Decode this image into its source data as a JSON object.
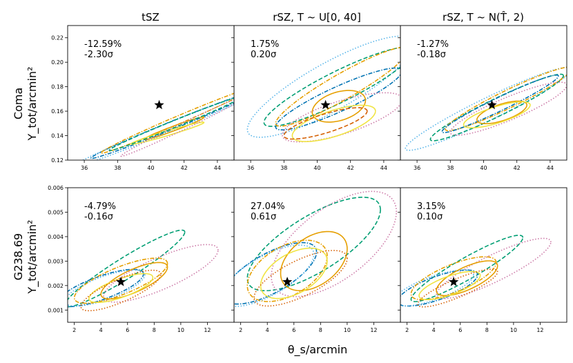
{
  "figure": {
    "column_titles": [
      "tSZ",
      "rSZ, T ~ U[0, 40]",
      "rSZ, T ~ N(T̂, 2)"
    ],
    "row_labels": [
      {
        "name": "Coma",
        "ylabel": "Y_tot/arcmin²"
      },
      {
        "name": "G238.69",
        "ylabel": "Y_tot/arcmin²"
      }
    ],
    "xlabel": "θ_s/arcmin"
  },
  "chart_data": [
    {
      "type": "scatter",
      "row": 0,
      "col": 0,
      "xlim": [
        35,
        45
      ],
      "ylim": [
        0.12,
        0.23
      ],
      "xticks": [
        "36",
        "38",
        "40",
        "42",
        "44"
      ],
      "yticks": [
        "0.12",
        "0.14",
        "0.16",
        "0.18",
        "0.20",
        "0.22"
      ],
      "annotation": [
        "-12.59%",
        "-2.30σ"
      ],
      "star": [
        40.5,
        0.165
      ],
      "ellipses": [
        {
          "color": "#0072B2",
          "style": "dashdot",
          "cx": 41.2,
          "cy": 0.148,
          "a": 4.8,
          "b": 0.0035,
          "angle": 0.0055
        },
        {
          "color": "#56B4E9",
          "style": "dotted",
          "cx": 40.8,
          "cy": 0.145,
          "a": 5.5,
          "b": 0.004,
          "angle": 0.0055
        },
        {
          "color": "#E69F00",
          "style": "dashdot",
          "cx": 41.5,
          "cy": 0.152,
          "a": 4.5,
          "b": 0.0035,
          "angle": 0.0058
        },
        {
          "color": "#E69F00",
          "style": "solid",
          "cx": 41.4,
          "cy": 0.146,
          "a": 1.8,
          "b": 0.002,
          "angle": 0.005
        },
        {
          "color": "#F0E442",
          "style": "solid",
          "cx": 41.0,
          "cy": 0.142,
          "a": 2.2,
          "b": 0.002,
          "angle": 0.004
        },
        {
          "color": "#CC79A7",
          "style": "dotted",
          "cx": 42.0,
          "cy": 0.148,
          "a": 3.8,
          "b": 0.003,
          "angle": 0.0065
        },
        {
          "color": "#009E73",
          "style": "dashed",
          "cx": 41.5,
          "cy": 0.15,
          "a": 4.0,
          "b": 0.003,
          "angle": 0.0055
        }
      ]
    },
    {
      "type": "scatter",
      "row": 0,
      "col": 1,
      "xlim": [
        35,
        45
      ],
      "ylim": [
        0.12,
        0.23
      ],
      "xticks": [
        "36",
        "38",
        "40",
        "42",
        "44"
      ],
      "yticks": [],
      "annotation": [
        "1.75%",
        "0.20σ"
      ],
      "star": [
        40.5,
        0.165
      ],
      "ellipses": [
        {
          "color": "#56B4E9",
          "style": "dotted",
          "cx": 40.8,
          "cy": 0.18,
          "a": 5.0,
          "b": 0.022,
          "angle": 0.007
        },
        {
          "color": "#009E73",
          "style": "dashed",
          "cx": 41.3,
          "cy": 0.18,
          "a": 4.5,
          "b": 0.014,
          "angle": 0.0065
        },
        {
          "color": "#E69F00",
          "style": "dashdot",
          "cx": 41.5,
          "cy": 0.18,
          "a": 4.0,
          "b": 0.012,
          "angle": 0.0075
        },
        {
          "color": "#0072B2",
          "style": "dashdot",
          "cx": 41.3,
          "cy": 0.17,
          "a": 3.8,
          "b": 0.011,
          "angle": 0.006
        },
        {
          "color": "#CC79A7",
          "style": "dotted",
          "cx": 41.5,
          "cy": 0.155,
          "a": 3.6,
          "b": 0.014,
          "angle": 0.004
        },
        {
          "color": "#E69F00",
          "style": "solid",
          "cx": 41.3,
          "cy": 0.164,
          "a": 1.6,
          "b": 0.012,
          "angle": 0.003
        },
        {
          "color": "#F0E442",
          "style": "solid",
          "cx": 41.0,
          "cy": 0.15,
          "a": 2.5,
          "b": 0.011,
          "angle": 0.004
        },
        {
          "color": "#D55E00",
          "style": "dashed",
          "cx": 40.5,
          "cy": 0.15,
          "a": 2.5,
          "b": 0.008,
          "angle": 0.004
        }
      ]
    },
    {
      "type": "scatter",
      "row": 0,
      "col": 2,
      "xlim": [
        35,
        45
      ],
      "ylim": [
        0.12,
        0.23
      ],
      "xticks": [
        "36",
        "38",
        "40",
        "42",
        "44"
      ],
      "yticks": [],
      "annotation": [
        "-1.27%",
        "-0.18σ"
      ],
      "star": [
        40.5,
        0.165
      ],
      "ellipses": [
        {
          "color": "#56B4E9",
          "style": "dotted",
          "cx": 40.3,
          "cy": 0.162,
          "a": 5.0,
          "b": 0.01,
          "angle": 0.0065
        },
        {
          "color": "#009E73",
          "style": "dashed",
          "cx": 40.8,
          "cy": 0.163,
          "a": 4.0,
          "b": 0.008,
          "angle": 0.0065
        },
        {
          "color": "#E69F00",
          "style": "dashdot",
          "cx": 41.5,
          "cy": 0.17,
          "a": 3.8,
          "b": 0.008,
          "angle": 0.0065
        },
        {
          "color": "#0072B2",
          "style": "dashdot",
          "cx": 41.0,
          "cy": 0.166,
          "a": 3.5,
          "b": 0.006,
          "angle": 0.0065
        },
        {
          "color": "#CC79A7",
          "style": "dotted",
          "cx": 41.5,
          "cy": 0.162,
          "a": 3.5,
          "b": 0.01,
          "angle": 0.0055
        },
        {
          "color": "#E69F00",
          "style": "solid",
          "cx": 41.1,
          "cy": 0.159,
          "a": 1.5,
          "b": 0.007,
          "angle": 0.004
        },
        {
          "color": "#F0E442",
          "style": "solid",
          "cx": 40.8,
          "cy": 0.157,
          "a": 2.0,
          "b": 0.007,
          "angle": 0.004
        }
      ]
    },
    {
      "type": "scatter",
      "row": 1,
      "col": 0,
      "xlim": [
        1.5,
        14
      ],
      "ylim": [
        0.0005,
        0.006
      ],
      "xticks": [
        "2",
        "4",
        "6",
        "8",
        "10",
        "12"
      ],
      "yticks": [
        "0.001",
        "0.002",
        "0.003",
        "0.004",
        "0.005",
        "0.006"
      ],
      "annotation": [
        "-4.79%",
        "-0.16σ"
      ],
      "star": [
        5.5,
        0.00215
      ],
      "ellipses": [
        {
          "color": "#009E73",
          "style": "dashed",
          "cx": 5.8,
          "cy": 0.0027,
          "a": 4.5,
          "b": 0.0005,
          "angle": 0.00033
        },
        {
          "color": "#CC79A7",
          "style": "dotted",
          "cx": 8.5,
          "cy": 0.0025,
          "a": 4.3,
          "b": 0.0007,
          "angle": 0.00022
        },
        {
          "color": "#0072B2",
          "style": "dashdot",
          "cx": 4.0,
          "cy": 0.0019,
          "a": 3.2,
          "b": 0.0005,
          "angle": 0.00018
        },
        {
          "color": "#56B4E9",
          "style": "dotted",
          "cx": 4.3,
          "cy": 0.0019,
          "a": 3.0,
          "b": 0.0005,
          "angle": 0.00018
        },
        {
          "color": "#E69F00",
          "style": "dashdot",
          "cx": 5.5,
          "cy": 0.0022,
          "a": 3.5,
          "b": 0.0006,
          "angle": 0.0002
        },
        {
          "color": "#E69F00",
          "style": "solid",
          "cx": 6.5,
          "cy": 0.0022,
          "a": 2.5,
          "b": 0.0005,
          "angle": 0.00022
        },
        {
          "color": "#F0E442",
          "style": "solid",
          "cx": 5.5,
          "cy": 0.0019,
          "a": 2.4,
          "b": 0.0004,
          "angle": 0.00018
        },
        {
          "color": "#D55E00",
          "style": "dotted",
          "cx": 5.5,
          "cy": 0.0018,
          "a": 3.0,
          "b": 0.0005,
          "angle": 0.00022
        }
      ]
    },
    {
      "type": "scatter",
      "row": 1,
      "col": 1,
      "xlim": [
        1.5,
        14
      ],
      "ylim": [
        0.0005,
        0.006
      ],
      "xticks": [
        "2",
        "4",
        "6",
        "8",
        "10",
        "12"
      ],
      "yticks": [],
      "annotation": [
        "27.04%",
        "0.61σ"
      ],
      "star": [
        5.5,
        0.00215
      ],
      "ellipses": [
        {
          "color": "#009E73",
          "style": "dashed",
          "cx": 7.5,
          "cy": 0.0037,
          "a": 5.0,
          "b": 0.0013,
          "angle": 0.00028
        },
        {
          "color": "#CC79A7",
          "style": "dotted",
          "cx": 9.0,
          "cy": 0.0037,
          "a": 4.7,
          "b": 0.0017,
          "angle": 0.00028
        },
        {
          "color": "#0072B2",
          "style": "dashdot",
          "cx": 4.2,
          "cy": 0.0025,
          "a": 3.5,
          "b": 0.0009,
          "angle": 0.00025
        },
        {
          "color": "#56B4E9",
          "style": "dotted",
          "cx": 4.0,
          "cy": 0.0024,
          "a": 3.5,
          "b": 0.0009,
          "angle": 0.00025
        },
        {
          "color": "#E69F00",
          "style": "dashdot",
          "cx": 5.5,
          "cy": 0.0026,
          "a": 3.0,
          "b": 0.0011,
          "angle": 0.0002
        },
        {
          "color": "#E69F00",
          "style": "solid",
          "cx": 7.5,
          "cy": 0.003,
          "a": 2.5,
          "b": 0.0011,
          "angle": 0.0002
        },
        {
          "color": "#F0E442",
          "style": "solid",
          "cx": 6.0,
          "cy": 0.0025,
          "a": 2.5,
          "b": 0.0009,
          "angle": 0.0002
        },
        {
          "color": "#D55E00",
          "style": "dotted",
          "cx": 6.5,
          "cy": 0.0023,
          "a": 3.5,
          "b": 0.0008,
          "angle": 0.00023
        }
      ]
    },
    {
      "type": "scatter",
      "row": 1,
      "col": 2,
      "xlim": [
        1.5,
        14
      ],
      "ylim": [
        0.0005,
        0.006
      ],
      "xticks": [
        "2",
        "4",
        "6",
        "8",
        "10",
        "12"
      ],
      "yticks": [],
      "annotation": [
        "3.15%",
        "0.10σ"
      ],
      "star": [
        5.5,
        0.00215
      ],
      "ellipses": [
        {
          "color": "#009E73",
          "style": "dashed",
          "cx": 6.5,
          "cy": 0.0027,
          "a": 4.2,
          "b": 0.0005,
          "angle": 0.0003
        },
        {
          "color": "#CC79A7",
          "style": "dotted",
          "cx": 8.5,
          "cy": 0.0027,
          "a": 4.3,
          "b": 0.0006,
          "angle": 0.00025
        },
        {
          "color": "#0072B2",
          "style": "dashdot",
          "cx": 4.3,
          "cy": 0.0019,
          "a": 3.0,
          "b": 0.0005,
          "angle": 0.00018
        },
        {
          "color": "#56B4E9",
          "style": "dotted",
          "cx": 4.0,
          "cy": 0.0019,
          "a": 3.0,
          "b": 0.0005,
          "angle": 0.00018
        },
        {
          "color": "#E69F00",
          "style": "dashdot",
          "cx": 5.5,
          "cy": 0.0023,
          "a": 3.2,
          "b": 0.0006,
          "angle": 0.0002
        },
        {
          "color": "#E69F00",
          "style": "solid",
          "cx": 6.5,
          "cy": 0.0023,
          "a": 2.3,
          "b": 0.0005,
          "angle": 0.00022
        },
        {
          "color": "#F0E442",
          "style": "solid",
          "cx": 5.2,
          "cy": 0.002,
          "a": 2.3,
          "b": 0.0004,
          "angle": 0.00018
        },
        {
          "color": "#D55E00",
          "style": "dotted",
          "cx": 5.8,
          "cy": 0.0019,
          "a": 3.0,
          "b": 0.0004,
          "angle": 0.00022
        }
      ]
    }
  ]
}
